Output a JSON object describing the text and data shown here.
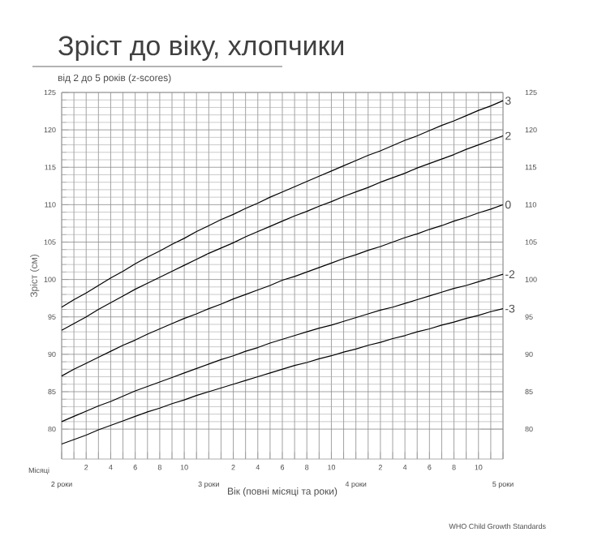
{
  "chart_data": {
    "type": "line",
    "title": "Зріст до віку, хлопчики",
    "subtitle": "від 2 до 5 років (z-scores)",
    "xlabel": "Вік (повні місяці та роки)",
    "ylabel": "Зріст (см)",
    "annotations": [
      "Місяці",
      "2 роки",
      "3 роки",
      "4 роки",
      "5 роки",
      "WHO Child Growth Standards"
    ],
    "categories": [
      null,
      null,
      "2",
      null,
      "4",
      null,
      "6",
      null,
      "8",
      null,
      "10",
      null,
      null,
      null,
      "2",
      null,
      "4",
      null,
      "6",
      null,
      "8",
      null,
      "10",
      null,
      null,
      null,
      "2",
      null,
      "4",
      null,
      "6",
      null,
      "8",
      null,
      "10",
      null,
      null
    ],
    "series": [
      {
        "name": "3",
        "color": "#000000",
        "values": [
          96.3,
          97.3,
          98.2,
          99.2,
          100.2,
          101.1,
          102.1,
          103.0,
          103.8,
          104.7,
          105.5,
          106.4,
          107.2,
          108.0,
          108.7,
          109.5,
          110.2,
          111.0,
          111.7,
          112.4,
          113.1,
          113.8,
          114.5,
          115.2,
          115.9,
          116.6,
          117.2,
          117.9,
          118.6,
          119.2,
          119.9,
          120.6,
          121.2,
          121.9,
          122.6,
          123.2,
          123.9
        ]
      },
      {
        "name": "2",
        "color": "#000000",
        "values": [
          93.2,
          94.1,
          95.0,
          96.0,
          96.9,
          97.8,
          98.7,
          99.5,
          100.3,
          101.1,
          101.9,
          102.7,
          103.5,
          104.2,
          104.9,
          105.7,
          106.4,
          107.1,
          107.8,
          108.5,
          109.1,
          109.8,
          110.4,
          111.1,
          111.7,
          112.3,
          113.0,
          113.6,
          114.2,
          114.9,
          115.5,
          116.1,
          116.7,
          117.4,
          118.0,
          118.6,
          119.2
        ]
      },
      {
        "name": "0",
        "color": "#000000",
        "values": [
          87.1,
          88.0,
          88.8,
          89.6,
          90.4,
          91.2,
          91.9,
          92.7,
          93.4,
          94.1,
          94.8,
          95.4,
          96.1,
          96.7,
          97.4,
          98.0,
          98.6,
          99.2,
          99.9,
          100.4,
          101.0,
          101.6,
          102.2,
          102.8,
          103.3,
          103.9,
          104.4,
          105.0,
          105.6,
          106.1,
          106.7,
          107.2,
          107.8,
          108.3,
          108.9,
          109.4,
          110.0
        ]
      },
      {
        "name": "-2",
        "color": "#000000",
        "values": [
          81.0,
          81.7,
          82.4,
          83.1,
          83.7,
          84.4,
          85.1,
          85.7,
          86.3,
          86.9,
          87.5,
          88.1,
          88.7,
          89.3,
          89.8,
          90.4,
          90.9,
          91.5,
          92.0,
          92.5,
          93.0,
          93.5,
          93.9,
          94.4,
          94.9,
          95.4,
          95.9,
          96.3,
          96.8,
          97.3,
          97.8,
          98.3,
          98.8,
          99.2,
          99.7,
          100.2,
          100.7
        ]
      },
      {
        "name": "-3",
        "color": "#000000",
        "values": [
          78.0,
          78.6,
          79.2,
          79.9,
          80.5,
          81.1,
          81.7,
          82.3,
          82.8,
          83.4,
          83.9,
          84.5,
          85.0,
          85.5,
          86.0,
          86.5,
          87.0,
          87.5,
          88.0,
          88.5,
          88.9,
          89.4,
          89.8,
          90.3,
          90.7,
          91.2,
          91.6,
          92.1,
          92.5,
          93.0,
          93.4,
          93.9,
          94.3,
          94.8,
          95.2,
          95.7,
          96.1
        ]
      }
    ],
    "ylim": [
      76,
      125
    ],
    "yticks": [
      80,
      85,
      90,
      95,
      100,
      105,
      110,
      115,
      120,
      125
    ],
    "y2lim": [
      76,
      125
    ],
    "y2ticks": [
      80,
      85,
      90,
      95,
      100,
      105,
      110,
      115,
      120,
      125
    ],
    "grid": true,
    "legend": false,
    "marker": "none",
    "line_style": "solid"
  }
}
